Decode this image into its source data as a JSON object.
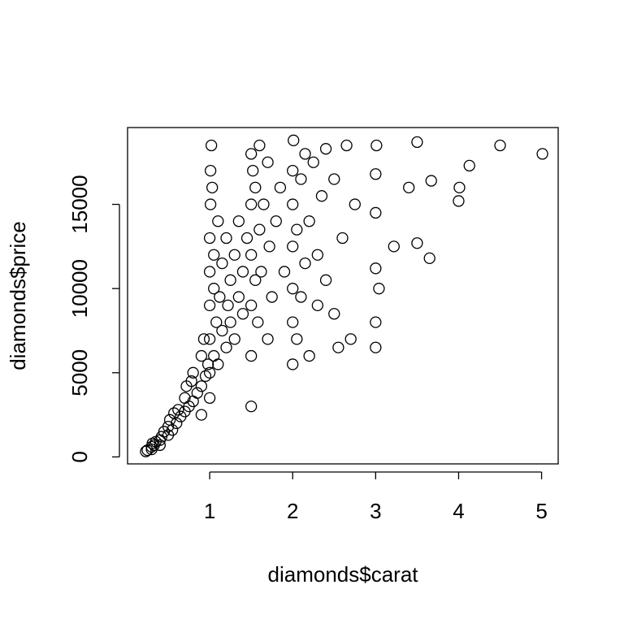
{
  "chart_data": {
    "type": "scatter",
    "x_label": "diamonds$carat",
    "y_label": "diamonds$price",
    "color": "#000000",
    "xlim": [
      0.01,
      5.2
    ],
    "ylim": [
      -414,
      19563
    ],
    "xticks": [
      1,
      2,
      3,
      4,
      5
    ],
    "yticks": [
      0,
      5000,
      10000,
      15000
    ],
    "x": [
      0.23,
      0.25,
      0.3,
      0.3,
      0.31,
      0.33,
      0.35,
      0.4,
      0.4,
      0.42,
      0.45,
      0.5,
      0.5,
      0.52,
      0.55,
      0.57,
      0.6,
      0.62,
      0.65,
      0.7,
      0.7,
      0.72,
      0.75,
      0.78,
      0.8,
      0.8,
      0.85,
      0.9,
      0.9,
      0.9,
      0.93,
      0.95,
      0.98,
      1.0,
      1.0,
      1.0,
      1.0,
      1.0,
      1.0,
      1.01,
      1.01,
      1.02,
      1.03,
      1.05,
      1.05,
      1.05,
      1.08,
      1.1,
      1.1,
      1.12,
      1.15,
      1.15,
      1.2,
      1.2,
      1.22,
      1.25,
      1.25,
      1.3,
      1.3,
      1.35,
      1.35,
      1.4,
      1.4,
      1.45,
      1.5,
      1.5,
      1.5,
      1.5,
      1.5,
      1.5,
      1.52,
      1.55,
      1.55,
      1.58,
      1.6,
      1.6,
      1.62,
      1.65,
      1.7,
      1.7,
      1.72,
      1.75,
      1.8,
      1.85,
      1.9,
      2.0,
      2.0,
      2.0,
      2.0,
      2.0,
      2.0,
      2.01,
      2.05,
      2.05,
      2.1,
      2.1,
      2.15,
      2.15,
      2.2,
      2.2,
      2.25,
      2.3,
      2.3,
      2.35,
      2.4,
      2.4,
      2.5,
      2.5,
      2.55,
      2.6,
      2.65,
      2.7,
      2.75,
      3.0,
      3.0,
      3.0,
      3.0,
      3.0,
      3.01,
      3.04,
      3.22,
      3.4,
      3.5,
      3.5,
      3.65,
      3.67,
      4.0,
      4.01,
      4.13,
      4.5,
      5.01
    ],
    "y": [
      326,
      400,
      450,
      600,
      800,
      700,
      900,
      1000,
      700,
      1200,
      1500,
      1300,
      1800,
      2200,
      1600,
      2600,
      2000,
      2800,
      2400,
      2700,
      3500,
      4200,
      3000,
      4500,
      3300,
      5000,
      3800,
      4200,
      6000,
      2500,
      7000,
      4800,
      5500,
      3500,
      5000,
      7000,
      9000,
      11000,
      13000,
      15000,
      17000,
      18500,
      16000,
      6000,
      10000,
      12000,
      8000,
      14000,
      5500,
      9500,
      7500,
      11500,
      6500,
      13000,
      9000,
      8000,
      10500,
      12000,
      7000,
      9500,
      14000,
      8500,
      11000,
      13000,
      3000,
      6000,
      9000,
      12000,
      15000,
      18000,
      17000,
      10500,
      16000,
      8000,
      13500,
      18500,
      11000,
      15000,
      7000,
      17500,
      12500,
      9500,
      14000,
      16000,
      11000,
      5500,
      8000,
      10000,
      12500,
      15000,
      17000,
      18800,
      7000,
      13500,
      9500,
      16500,
      18000,
      11500,
      14000,
      6000,
      17500,
      9000,
      12000,
      15500,
      18300,
      10500,
      8500,
      16500,
      6500,
      13000,
      18500,
      7000,
      15000,
      6500,
      8000,
      11200,
      14500,
      16800,
      18500,
      10000,
      12500,
      16000,
      12700,
      18700,
      11800,
      16400,
      15200,
      16000,
      17300,
      18500,
      18000
    ]
  }
}
